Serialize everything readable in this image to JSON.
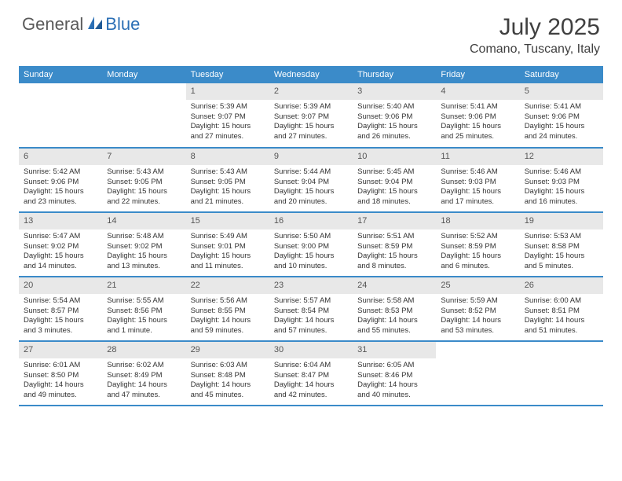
{
  "logo": {
    "part1": "General",
    "part2": "Blue"
  },
  "title": "July 2025",
  "location": "Comano, Tuscany, Italy",
  "colors": {
    "header_bg": "#3b8bc9",
    "header_text": "#ffffff",
    "daynum_bg": "#e8e8e8",
    "border": "#3b8bc9",
    "logo_gray": "#5a5a5a",
    "logo_blue": "#2b6fb5",
    "text": "#333333"
  },
  "weekdays": [
    "Sunday",
    "Monday",
    "Tuesday",
    "Wednesday",
    "Thursday",
    "Friday",
    "Saturday"
  ],
  "weeks": [
    [
      null,
      null,
      {
        "n": "1",
        "sunrise": "5:39 AM",
        "sunset": "9:07 PM",
        "daylight": "15 hours and 27 minutes."
      },
      {
        "n": "2",
        "sunrise": "5:39 AM",
        "sunset": "9:07 PM",
        "daylight": "15 hours and 27 minutes."
      },
      {
        "n": "3",
        "sunrise": "5:40 AM",
        "sunset": "9:06 PM",
        "daylight": "15 hours and 26 minutes."
      },
      {
        "n": "4",
        "sunrise": "5:41 AM",
        "sunset": "9:06 PM",
        "daylight": "15 hours and 25 minutes."
      },
      {
        "n": "5",
        "sunrise": "5:41 AM",
        "sunset": "9:06 PM",
        "daylight": "15 hours and 24 minutes."
      }
    ],
    [
      {
        "n": "6",
        "sunrise": "5:42 AM",
        "sunset": "9:06 PM",
        "daylight": "15 hours and 23 minutes."
      },
      {
        "n": "7",
        "sunrise": "5:43 AM",
        "sunset": "9:05 PM",
        "daylight": "15 hours and 22 minutes."
      },
      {
        "n": "8",
        "sunrise": "5:43 AM",
        "sunset": "9:05 PM",
        "daylight": "15 hours and 21 minutes."
      },
      {
        "n": "9",
        "sunrise": "5:44 AM",
        "sunset": "9:04 PM",
        "daylight": "15 hours and 20 minutes."
      },
      {
        "n": "10",
        "sunrise": "5:45 AM",
        "sunset": "9:04 PM",
        "daylight": "15 hours and 18 minutes."
      },
      {
        "n": "11",
        "sunrise": "5:46 AM",
        "sunset": "9:03 PM",
        "daylight": "15 hours and 17 minutes."
      },
      {
        "n": "12",
        "sunrise": "5:46 AM",
        "sunset": "9:03 PM",
        "daylight": "15 hours and 16 minutes."
      }
    ],
    [
      {
        "n": "13",
        "sunrise": "5:47 AM",
        "sunset": "9:02 PM",
        "daylight": "15 hours and 14 minutes."
      },
      {
        "n": "14",
        "sunrise": "5:48 AM",
        "sunset": "9:02 PM",
        "daylight": "15 hours and 13 minutes."
      },
      {
        "n": "15",
        "sunrise": "5:49 AM",
        "sunset": "9:01 PM",
        "daylight": "15 hours and 11 minutes."
      },
      {
        "n": "16",
        "sunrise": "5:50 AM",
        "sunset": "9:00 PM",
        "daylight": "15 hours and 10 minutes."
      },
      {
        "n": "17",
        "sunrise": "5:51 AM",
        "sunset": "8:59 PM",
        "daylight": "15 hours and 8 minutes."
      },
      {
        "n": "18",
        "sunrise": "5:52 AM",
        "sunset": "8:59 PM",
        "daylight": "15 hours and 6 minutes."
      },
      {
        "n": "19",
        "sunrise": "5:53 AM",
        "sunset": "8:58 PM",
        "daylight": "15 hours and 5 minutes."
      }
    ],
    [
      {
        "n": "20",
        "sunrise": "5:54 AM",
        "sunset": "8:57 PM",
        "daylight": "15 hours and 3 minutes."
      },
      {
        "n": "21",
        "sunrise": "5:55 AM",
        "sunset": "8:56 PM",
        "daylight": "15 hours and 1 minute."
      },
      {
        "n": "22",
        "sunrise": "5:56 AM",
        "sunset": "8:55 PM",
        "daylight": "14 hours and 59 minutes."
      },
      {
        "n": "23",
        "sunrise": "5:57 AM",
        "sunset": "8:54 PM",
        "daylight": "14 hours and 57 minutes."
      },
      {
        "n": "24",
        "sunrise": "5:58 AM",
        "sunset": "8:53 PM",
        "daylight": "14 hours and 55 minutes."
      },
      {
        "n": "25",
        "sunrise": "5:59 AM",
        "sunset": "8:52 PM",
        "daylight": "14 hours and 53 minutes."
      },
      {
        "n": "26",
        "sunrise": "6:00 AM",
        "sunset": "8:51 PM",
        "daylight": "14 hours and 51 minutes."
      }
    ],
    [
      {
        "n": "27",
        "sunrise": "6:01 AM",
        "sunset": "8:50 PM",
        "daylight": "14 hours and 49 minutes."
      },
      {
        "n": "28",
        "sunrise": "6:02 AM",
        "sunset": "8:49 PM",
        "daylight": "14 hours and 47 minutes."
      },
      {
        "n": "29",
        "sunrise": "6:03 AM",
        "sunset": "8:48 PM",
        "daylight": "14 hours and 45 minutes."
      },
      {
        "n": "30",
        "sunrise": "6:04 AM",
        "sunset": "8:47 PM",
        "daylight": "14 hours and 42 minutes."
      },
      {
        "n": "31",
        "sunrise": "6:05 AM",
        "sunset": "8:46 PM",
        "daylight": "14 hours and 40 minutes."
      },
      null,
      null
    ]
  ]
}
